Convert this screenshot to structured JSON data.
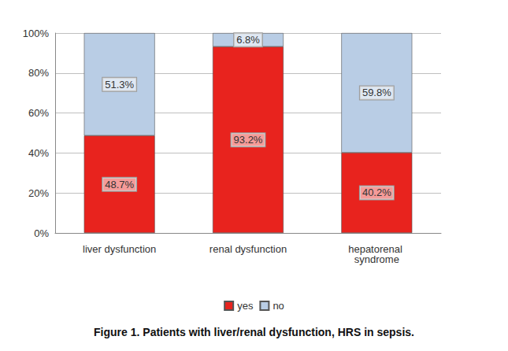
{
  "chart_data": {
    "type": "bar",
    "stacked": true,
    "title": "Figure 1. Patients with liver/renal dysfunction, HRS in sepsis.",
    "categories": [
      "liver dysfunction",
      "renal dysfunction",
      "hepatorenal syndrome"
    ],
    "series": [
      {
        "name": "yes",
        "color": "#e8231e",
        "values": [
          48.7,
          93.2,
          40.2
        ],
        "value_labels": [
          "48.7%",
          "93.2%",
          "40.2%"
        ]
      },
      {
        "name": "no",
        "color": "#b9cde5",
        "values": [
          51.3,
          6.8,
          59.8
        ],
        "value_labels": [
          "51.3%",
          "6.8%",
          "59.8%"
        ]
      }
    ],
    "ylim": [
      0,
      100
    ],
    "yticks": [
      {
        "value": 0,
        "label": "0%"
      },
      {
        "value": 20,
        "label": "20%"
      },
      {
        "value": 40,
        "label": "40%"
      },
      {
        "value": 60,
        "label": "60%"
      },
      {
        "value": 80,
        "label": "80%"
      },
      {
        "value": 100,
        "label": "100%"
      }
    ],
    "grid": true,
    "data_labels": true,
    "legend": "bottom"
  }
}
